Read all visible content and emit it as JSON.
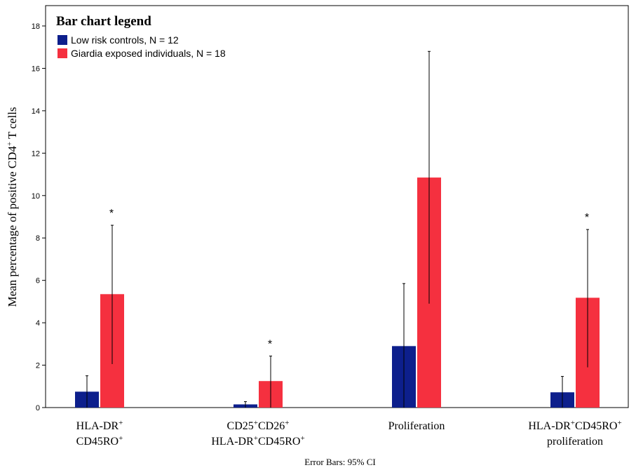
{
  "chart_data": {
    "type": "bar",
    "ylabel_parts": [
      "Mean percentage of positive CD4",
      "+",
      " T cells"
    ],
    "ylim": [
      0,
      18
    ],
    "yticks": [
      0,
      2,
      4,
      6,
      8,
      10,
      12,
      14,
      16,
      18
    ],
    "grid": false,
    "footer": "Error Bars: 95% CI",
    "legend": {
      "title": "Bar chart legend",
      "placement": "top-left",
      "items": [
        {
          "label": "Low risk controls, N = 12",
          "color": "#0d1f8c"
        },
        {
          "label": "Giardia exposed individuals, N = 18",
          "color": "#f5303f"
        }
      ]
    },
    "categories": [
      {
        "label_lines": [
          [
            {
              "t": "HLA-DR"
            },
            {
              "t": "+",
              "sup": true
            }
          ],
          [
            {
              "t": "CD45RO"
            },
            {
              "t": "+",
              "sup": true
            }
          ]
        ]
      },
      {
        "label_lines": [
          [
            {
              "t": "CD25"
            },
            {
              "t": "+",
              "sup": true
            },
            {
              "t": "CD26"
            },
            {
              "t": "+",
              "sup": true
            }
          ],
          [
            {
              "t": "HLA-DR"
            },
            {
              "t": "+",
              "sup": true
            },
            {
              "t": "CD45RO"
            },
            {
              "t": "+",
              "sup": true
            }
          ]
        ]
      },
      {
        "label_lines": [
          [
            {
              "t": "Proliferation"
            }
          ]
        ]
      },
      {
        "label_lines": [
          [
            {
              "t": "HLA-DR"
            },
            {
              "t": "+",
              "sup": true
            },
            {
              "t": "CD45RO"
            },
            {
              "t": "+",
              "sup": true
            }
          ],
          [
            {
              "t": "proliferation"
            }
          ]
        ]
      }
    ],
    "series": [
      {
        "name": "Low risk controls, N = 12",
        "color": "#0d1f8c",
        "values": [
          0.75,
          0.15,
          2.9,
          0.72
        ],
        "ci_low": [
          0.0,
          0.0,
          0.0,
          0.0
        ],
        "ci_high": [
          1.5,
          0.28,
          5.85,
          1.47
        ]
      },
      {
        "name": "Giardia exposed individuals, N = 18",
        "color": "#f5303f",
        "values": [
          5.35,
          1.25,
          10.85,
          5.18
        ],
        "ci_low": [
          2.05,
          0.0,
          4.9,
          1.9
        ],
        "ci_high": [
          8.6,
          2.43,
          16.8,
          8.4
        ]
      }
    ],
    "annotations": [
      "*",
      "*",
      "",
      "*"
    ]
  }
}
